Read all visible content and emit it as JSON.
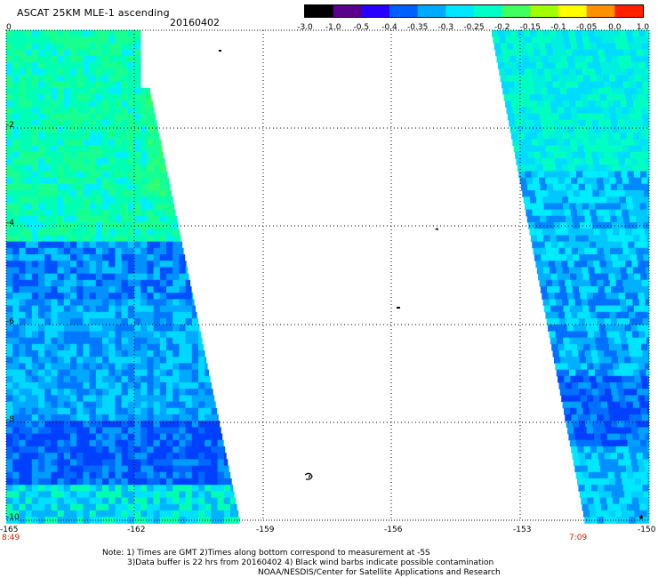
{
  "header": {
    "title": "ASCAT 25KM MLE-1 ascending",
    "date": "20160402"
  },
  "colorbar": {
    "labels": [
      "-3.0",
      "-1.0",
      "-0.5",
      "-0.4",
      "-0.35",
      "-0.3",
      "-0.25",
      "-0.2",
      "-0.15",
      "-0.1",
      "-0.05",
      "0.0",
      "1.0"
    ],
    "colors": [
      "#000000",
      "#5a008c",
      "#2800ff",
      "#0060ff",
      "#00aaff",
      "#00e6ff",
      "#00ffc8",
      "#40ff60",
      "#a0ff00",
      "#ffff00",
      "#ff9000",
      "#ff2000"
    ]
  },
  "axes": {
    "x_labels": [
      "-165",
      "-162",
      "-159",
      "-156",
      "-153",
      "-150"
    ],
    "y_labels": [
      "0",
      "-2",
      "-4",
      "-6",
      "-8",
      "-10"
    ]
  },
  "swath_times": {
    "left": "8:49",
    "right": "7:09"
  },
  "notes": {
    "line1": "Note: 1) Times are GMT 2)Times along bottom correspond to measurement at -5S",
    "line2": "3)Data buffer is 22 hrs from 20160402 4) Black wind barbs indicate possible contamination",
    "line3": "NOAA/NESDIS/Center for Satellite Applications and Research"
  }
}
